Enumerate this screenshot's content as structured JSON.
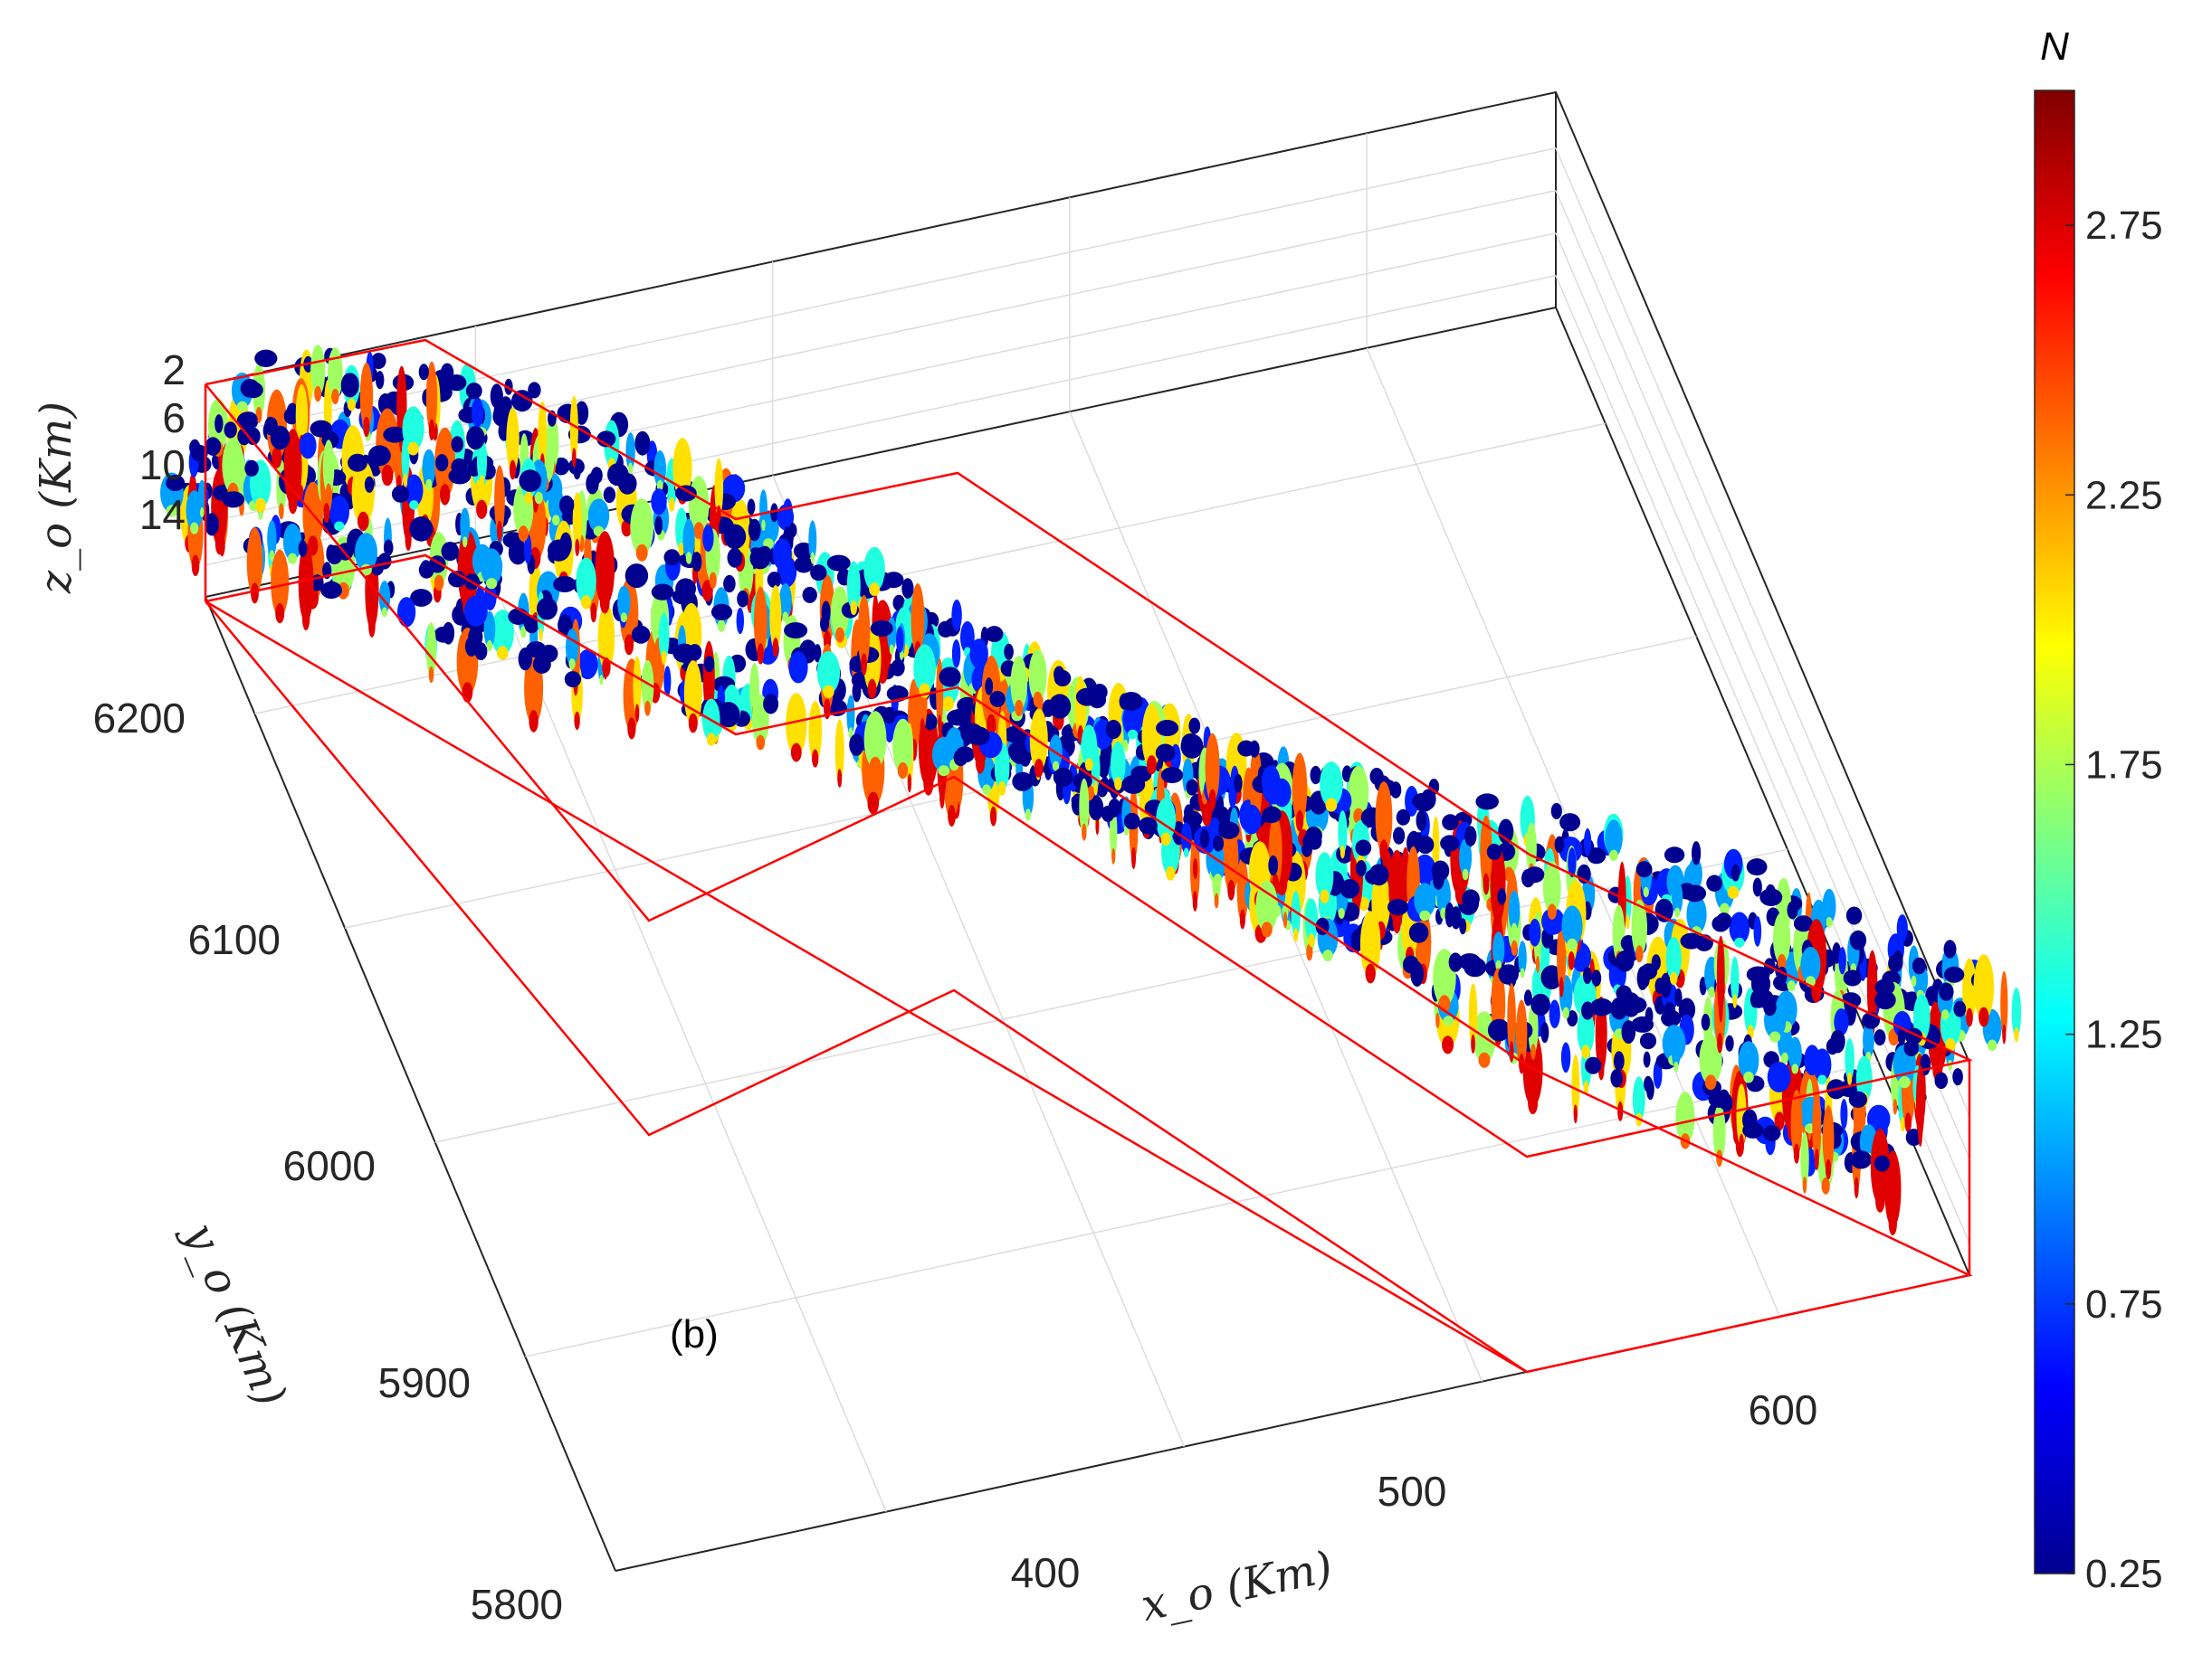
{
  "chart_data": {
    "type": "scatter",
    "panel_label": "(b)",
    "x_axis": {
      "label": "x_o (Km)",
      "ticks": [
        "400",
        "500",
        "600"
      ],
      "range": [
        300,
        650
      ]
    },
    "y_axis": {
      "label": "y_o (Km)",
      "ticks": [
        "5800",
        "5900",
        "6000",
        "6100",
        "6200"
      ],
      "range": [
        5800,
        6250
      ]
    },
    "z_axis": {
      "label": "z_o (Km)",
      "ticks": [
        "2",
        "6",
        "10",
        "14"
      ],
      "range": [
        0,
        18
      ],
      "reversed": true
    },
    "colorbar": {
      "title": "N",
      "ticks": [
        "0.25",
        "0.75",
        "1.25",
        "1.75",
        "2.25",
        "2.75"
      ],
      "range": [
        0.25,
        3.0
      ],
      "colormap": "jet"
    },
    "grid": true,
    "outline_color": "#ff0000",
    "marker_colors": [
      "#00008f",
      "#0020ff",
      "#00a0ff",
      "#20ffdf",
      "#a0ff60",
      "#ffe000",
      "#ff6000",
      "#e00000"
    ]
  }
}
